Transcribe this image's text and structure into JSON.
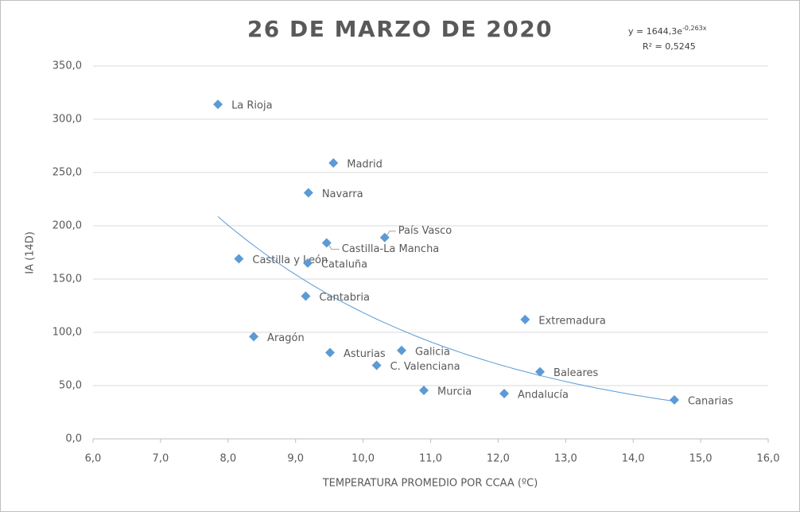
{
  "chart_data": {
    "type": "scatter",
    "title": "26 DE MARZO DE 2020",
    "x_label": "TEMPERATURA  PROMEDIO POR CCAA (ºC)",
    "y_label": "IA (14D)",
    "color": "#5b9bd5",
    "labels": [
      "La Rioja",
      "Madrid",
      "Navarra",
      "País Vasco",
      "Castilla-La Mancha",
      "Castilla y León",
      "Cataluña",
      "Cantabria",
      "Extremadura",
      "Aragón",
      "Asturias",
      "Galicia",
      "C. Valenciana",
      "Baleares",
      "Murcia",
      "Andalucía",
      "Canarias"
    ],
    "x": [
      7.85,
      9.56,
      9.19,
      10.32,
      9.46,
      8.16,
      9.18,
      9.15,
      12.4,
      8.38,
      9.51,
      10.57,
      10.2,
      12.62,
      10.9,
      12.09,
      14.61
    ],
    "values": [
      314,
      259,
      231,
      189,
      184,
      169,
      165,
      134,
      112,
      96,
      81,
      83,
      69,
      63,
      45.5,
      42.5,
      36.6
    ],
    "trendline": {
      "equation": "y = 1644,3e",
      "exponent": "-0,263x",
      "r2": "R² = 0,5245",
      "a": 1644.3,
      "b": -0.263
    },
    "xlim": [
      6,
      16
    ],
    "xticks": [
      {
        "value": 6,
        "label": "6,0"
      },
      {
        "value": 7,
        "label": "7,0"
      },
      {
        "value": 8,
        "label": "8,0"
      },
      {
        "value": 9,
        "label": "9,0"
      },
      {
        "value": 10,
        "label": "10,0"
      },
      {
        "value": 11,
        "label": "11,0"
      },
      {
        "value": 12,
        "label": "12,0"
      },
      {
        "value": 13,
        "label": "13,0"
      },
      {
        "value": 14,
        "label": "14,0"
      },
      {
        "value": 15,
        "label": "15,0"
      },
      {
        "value": 16,
        "label": "16,0"
      }
    ],
    "ylim": [
      0,
      350
    ],
    "yticks": [
      {
        "value": 0,
        "label": "0,0"
      },
      {
        "value": 50,
        "label": "50,0"
      },
      {
        "value": 100,
        "label": "100,0"
      },
      {
        "value": 150,
        "label": "150,0"
      },
      {
        "value": 200,
        "label": "200,0"
      },
      {
        "value": 250,
        "label": "250,0"
      },
      {
        "value": 300,
        "label": "300,0"
      },
      {
        "value": 350,
        "label": "350,0"
      }
    ],
    "grid": true
  }
}
